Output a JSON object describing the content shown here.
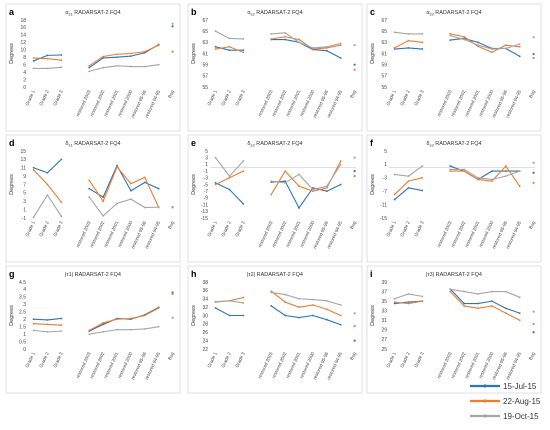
{
  "figure": {
    "x_categories": [
      "Grade 1",
      "Grade 2",
      "Grade 3",
      "restored 2003",
      "restored 2002",
      "restored 2001",
      "restored 2000",
      "restored 95-96",
      "restored 94-95",
      "Bog"
    ],
    "ylabel": "Degrees",
    "legend": [
      {
        "name": "15-Jul-15",
        "color": "#2E75B6"
      },
      {
        "name": "22-Aug-15",
        "color": "#ED7D31"
      },
      {
        "name": "19-Oct-15",
        "color": "#A5A5A5"
      }
    ]
  },
  "chart_data": [
    {
      "panel": "a",
      "type": "line",
      "title": "α_s1 RADARSAT-2 FQ4",
      "yticks": [
        0,
        2,
        4,
        6,
        8,
        10,
        12,
        14,
        16,
        18
      ],
      "ylim": [
        0,
        18
      ],
      "zero_line": false,
      "series": [
        {
          "name": "15-Jul-15",
          "values": [
            7.0,
            8.5,
            8.6,
            5.2,
            7.8,
            8.0,
            8.3,
            9.2,
            11.4,
            16.3
          ]
        },
        {
          "name": "22-Aug-15",
          "values": [
            7.8,
            7.6,
            7.2,
            5.7,
            8.2,
            8.8,
            9.0,
            9.5,
            11.2,
            9.5
          ]
        },
        {
          "name": "19-Oct-15",
          "values": [
            5.0,
            5.0,
            5.3,
            4.2,
            5.2,
            5.7,
            5.5,
            5.5,
            6.0,
            17.0
          ]
        }
      ]
    },
    {
      "panel": "b",
      "type": "line",
      "title": "α_s2 RADARSAT-2 FQ4",
      "yticks": [
        55,
        57,
        59,
        61,
        63,
        65,
        67
      ],
      "ylim": [
        55,
        67
      ],
      "zero_line": false,
      "series": [
        {
          "name": "15-Jul-15",
          "values": [
            62.2,
            61.6,
            61.6,
            63.5,
            63.5,
            63.0,
            61.7,
            61.5,
            60.2,
            59.0
          ]
        },
        {
          "name": "22-Aug-15",
          "values": [
            61.8,
            62.2,
            61.2,
            63.6,
            64.0,
            63.5,
            61.8,
            62.0,
            62.5,
            58.1
          ]
        },
        {
          "name": "19-Oct-15",
          "values": [
            65.0,
            63.7,
            63.6,
            64.5,
            64.7,
            63.0,
            62.0,
            62.2,
            62.8,
            62.5
          ]
        }
      ]
    },
    {
      "panel": "c",
      "type": "line",
      "title": "α_s3 RADARSAT-2 FQ4",
      "yticks": [
        55,
        57,
        59,
        61,
        63,
        65,
        67
      ],
      "ylim": [
        55,
        67
      ],
      "zero_line": false,
      "series": [
        {
          "name": "15-Jul-15",
          "values": [
            61.8,
            62.0,
            61.8,
            63.4,
            63.7,
            63.0,
            61.9,
            61.9,
            60.5,
            60.9
          ]
        },
        {
          "name": "22-Aug-15",
          "values": [
            62.0,
            63.3,
            63.0,
            64.5,
            64.0,
            62.3,
            61.2,
            62.5,
            62.2,
            60.2
          ]
        },
        {
          "name": "19-Oct-15",
          "values": [
            64.8,
            64.5,
            64.5,
            64.2,
            63.5,
            62.5,
            61.8,
            61.9,
            62.7,
            63.9
          ]
        }
      ]
    },
    {
      "panel": "d",
      "type": "line",
      "title": "δ_s1 RADARSAT-2 FQ4",
      "yticks": [
        -1,
        1,
        3,
        5,
        7,
        9,
        11,
        13,
        15
      ],
      "ylim": [
        -1,
        15
      ],
      "zero_line": false,
      "series": [
        {
          "name": "15-Jul-15",
          "values": [
            11.0,
            9.8,
            13.0,
            6.0,
            4.0,
            11.5,
            5.5,
            7.5,
            6.0,
            1.6
          ]
        },
        {
          "name": "22-Aug-15",
          "values": [
            10.5,
            7.0,
            2.8,
            8.0,
            3.0,
            11.2,
            7.2,
            8.7,
            1.5,
            1.6
          ]
        },
        {
          "name": "19-Oct-15",
          "values": [
            -0.8,
            4.5,
            -0.6,
            4.0,
            -0.5,
            2.5,
            3.5,
            1.5,
            1.6,
            1.5
          ]
        }
      ]
    },
    {
      "panel": "e",
      "type": "line",
      "title": "δ_s2 RADARSAT-2 FQ4",
      "yticks": [
        -15,
        -13,
        -11,
        -9,
        -7,
        -5,
        -3,
        -1,
        1,
        3,
        5
      ],
      "ylim": [
        -15,
        5
      ],
      "zero_line": true,
      "series": [
        {
          "name": "15-Jul-15",
          "values": [
            -4.5,
            -6.5,
            -10.8,
            -4.3,
            -4.0,
            -12.0,
            -6.0,
            -7.0,
            -5.0,
            -1.0
          ]
        },
        {
          "name": "22-Aug-15",
          "values": [
            -5.0,
            -3.0,
            -1.0,
            -8.0,
            -1.0,
            -5.5,
            -7.0,
            -6.0,
            2.0,
            -2.5
          ]
        },
        {
          "name": "19-Oct-15",
          "values": [
            3.0,
            -2.5,
            2.0,
            -4.0,
            -4.5,
            -2.0,
            -6.5,
            -5.5,
            1.0,
            3.0
          ]
        }
      ]
    },
    {
      "panel": "f",
      "type": "line",
      "title": "δ_s3 RADARSAT-2 FQ4",
      "yticks": [
        -15,
        -11,
        -7,
        -3,
        1,
        5
      ],
      "ylim": [
        -15,
        5
      ],
      "zero_line": true,
      "series": [
        {
          "name": "15-Jul-15",
          "values": [
            -9.5,
            -6.0,
            -6.8,
            0.5,
            -1.0,
            -3.5,
            -1.0,
            -1.0,
            -1.0,
            -1.5
          ]
        },
        {
          "name": "22-Aug-15",
          "values": [
            -8.0,
            -4.0,
            -3.0,
            -1.0,
            -1.0,
            -3.5,
            -4.0,
            0.5,
            -5.5,
            -4.5
          ]
        },
        {
          "name": "19-Oct-15",
          "values": [
            -2.0,
            -2.5,
            0.5,
            -0.5,
            -0.5,
            -3.0,
            -3.5,
            -2.5,
            -1.0,
            1.5
          ]
        }
      ]
    },
    {
      "panel": "g",
      "type": "line",
      "title": "|τ1| RADARSAT-2 FQ4",
      "yticks": [
        0,
        0.5,
        1,
        1.5,
        2,
        2.5,
        3,
        3.5,
        4,
        4.5
      ],
      "ylim": [
        0,
        4.5
      ],
      "zero_line": false,
      "series": [
        {
          "name": "15-Jul-15",
          "values": [
            2.0,
            1.95,
            2.05,
            1.2,
            1.65,
            2.05,
            2.0,
            2.3,
            2.8,
            3.8
          ]
        },
        {
          "name": "22-Aug-15",
          "values": [
            1.7,
            1.65,
            1.6,
            1.25,
            1.75,
            2.0,
            2.05,
            2.25,
            2.75,
            3.7
          ]
        },
        {
          "name": "19-Oct-15",
          "values": [
            1.25,
            1.15,
            1.2,
            1.0,
            1.15,
            1.3,
            1.3,
            1.35,
            1.5,
            2.1
          ]
        }
      ]
    },
    {
      "panel": "h",
      "type": "line",
      "title": "|τ2| RADARSAT-2 FQ4",
      "yticks": [
        22,
        24,
        26,
        28,
        30,
        32,
        34,
        36,
        38
      ],
      "ylim": [
        22,
        38
      ],
      "zero_line": false,
      "series": [
        {
          "name": "15-Jul-15",
          "values": [
            31.8,
            30.0,
            30.0,
            32.3,
            30.0,
            29.5,
            30.0,
            29.0,
            27.8,
            24.0
          ]
        },
        {
          "name": "22-Aug-15",
          "values": [
            33.2,
            33.5,
            34.3,
            35.8,
            33.2,
            32.0,
            32.5,
            31.5,
            30.0,
            27.5
          ]
        },
        {
          "name": "19-Oct-15",
          "values": [
            33.3,
            33.5,
            33.0,
            35.5,
            35.0,
            34.0,
            33.8,
            33.5,
            32.5,
            30.5
          ]
        }
      ]
    },
    {
      "panel": "i",
      "type": "line",
      "title": "|τ3| RADARSAT-2 FQ4",
      "yticks": [
        25,
        27,
        29,
        31,
        33,
        35,
        37,
        39
      ],
      "ylim": [
        25,
        39
      ],
      "zero_line": false,
      "series": [
        {
          "name": "15-Jul-15",
          "values": [
            34.5,
            34.8,
            35.0,
            37.5,
            34.5,
            34.5,
            35.0,
            33.5,
            32.5,
            28.5
          ]
        },
        {
          "name": "22-Aug-15",
          "values": [
            34.8,
            34.5,
            35.0,
            37.0,
            34.0,
            33.5,
            34.0,
            32.5,
            31.0,
            30.2
          ]
        },
        {
          "name": "19-Oct-15",
          "values": [
            35.5,
            36.5,
            36.0,
            37.5,
            37.0,
            36.5,
            37.0,
            37.0,
            35.8,
            32.8
          ]
        }
      ]
    }
  ]
}
